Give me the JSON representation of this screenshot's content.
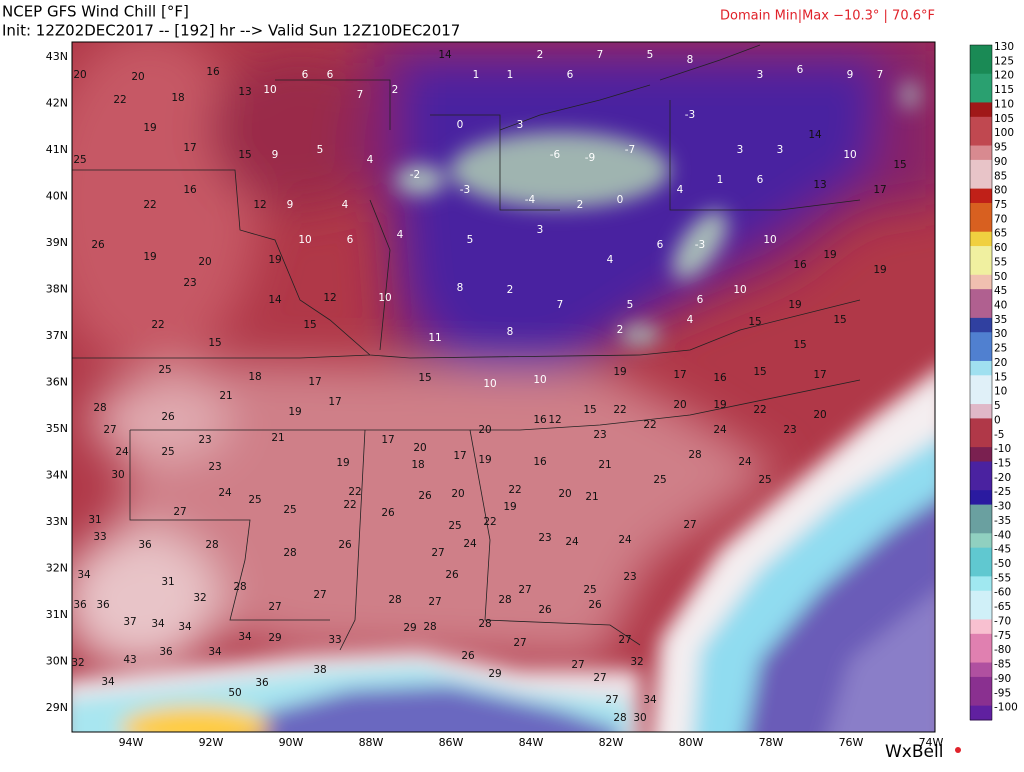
{
  "header": {
    "title": "NCEP GFS Wind Chill [°F]",
    "init": "Init: 12Z02DEC2017 -- [192] hr --> Valid Sun 12Z10DEC2017",
    "domain": "Domain Min|Max −10.3° | 70.6°F"
  },
  "lat_labels": [
    "43N",
    "42N",
    "41N",
    "40N",
    "39N",
    "38N",
    "37N",
    "36N",
    "35N",
    "34N",
    "33N",
    "32N",
    "31N",
    "30N",
    "29N"
  ],
  "lon_labels": [
    "94W",
    "92W",
    "90W",
    "88W",
    "86W",
    "84W",
    "82W",
    "80W",
    "78W",
    "76W",
    "74W"
  ],
  "colorbar_labels": [
    "130",
    "125",
    "120",
    "115",
    "110",
    "105",
    "100",
    "95",
    "90",
    "85",
    "80",
    "75",
    "70",
    "65",
    "60",
    "55",
    "50",
    "45",
    "40",
    "35",
    "30",
    "25",
    "20",
    "15",
    "10",
    "5",
    "0",
    "-5",
    "-10",
    "-15",
    "-20",
    "-25",
    "-30",
    "-35",
    "-40",
    "-45",
    "-50",
    "-55",
    "-60",
    "-65",
    "-70",
    "-75",
    "-80",
    "-85",
    "-90",
    "-95",
    "-100"
  ],
  "stations": [
    "20",
    "20",
    "18",
    "16",
    "13",
    "10",
    "6",
    "6",
    "7",
    "2",
    "14",
    "1",
    "1",
    "2",
    "6",
    "7",
    "5",
    "8",
    "3",
    "6",
    "9",
    "7",
    "22",
    "19",
    "17",
    "15",
    "9",
    "5",
    "4",
    "0",
    "3",
    "-6",
    "-9",
    "-7",
    "-3",
    "3",
    "3",
    "14",
    "10",
    "15",
    "25",
    "22",
    "16",
    "12",
    "9",
    "4",
    "-2",
    "-3",
    "-4",
    "2",
    "0",
    "4",
    "1",
    "6",
    "13",
    "17",
    "26",
    "19",
    "20",
    "19",
    "10",
    "6",
    "4",
    "5",
    "3",
    "4",
    "6",
    "-3",
    "10",
    "16",
    "19",
    "19",
    "23",
    "14",
    "12",
    "10",
    "8",
    "2",
    "7",
    "5",
    "6",
    "10",
    "19",
    "15",
    "22",
    "15",
    "15",
    "11",
    "8",
    "2",
    "4",
    "15",
    "15",
    "25",
    "18",
    "17",
    "15",
    "10",
    "10",
    "19",
    "17",
    "16",
    "15",
    "17",
    "28",
    "26",
    "21",
    "19",
    "17",
    "16",
    "12",
    "15",
    "22",
    "20",
    "19",
    "22",
    "20",
    "27",
    "23",
    "21",
    "17",
    "20",
    "20",
    "23",
    "22",
    "24",
    "23",
    "24",
    "25",
    "23",
    "19",
    "18",
    "17",
    "19",
    "16",
    "21",
    "28",
    "24",
    "30",
    "24",
    "25",
    "22",
    "26",
    "20",
    "22",
    "20",
    "21",
    "25",
    "25",
    "31",
    "27",
    "25",
    "22",
    "26",
    "25",
    "22",
    "19",
    "27",
    "33",
    "36",
    "28",
    "28",
    "26",
    "27",
    "24",
    "23",
    "24",
    "24",
    "34",
    "31",
    "28",
    "27",
    "26",
    "27",
    "25",
    "23",
    "36",
    "36",
    "32",
    "27",
    "28",
    "27",
    "28",
    "26",
    "26",
    "37",
    "34",
    "34",
    "34",
    "29",
    "33",
    "29",
    "28",
    "28",
    "27",
    "27",
    "32",
    "43",
    "36",
    "34",
    "36",
    "38",
    "26",
    "27",
    "32",
    "34",
    "50",
    "29",
    "27",
    "27",
    "34",
    "30",
    "28"
  ],
  "logo": "WxBell"
}
